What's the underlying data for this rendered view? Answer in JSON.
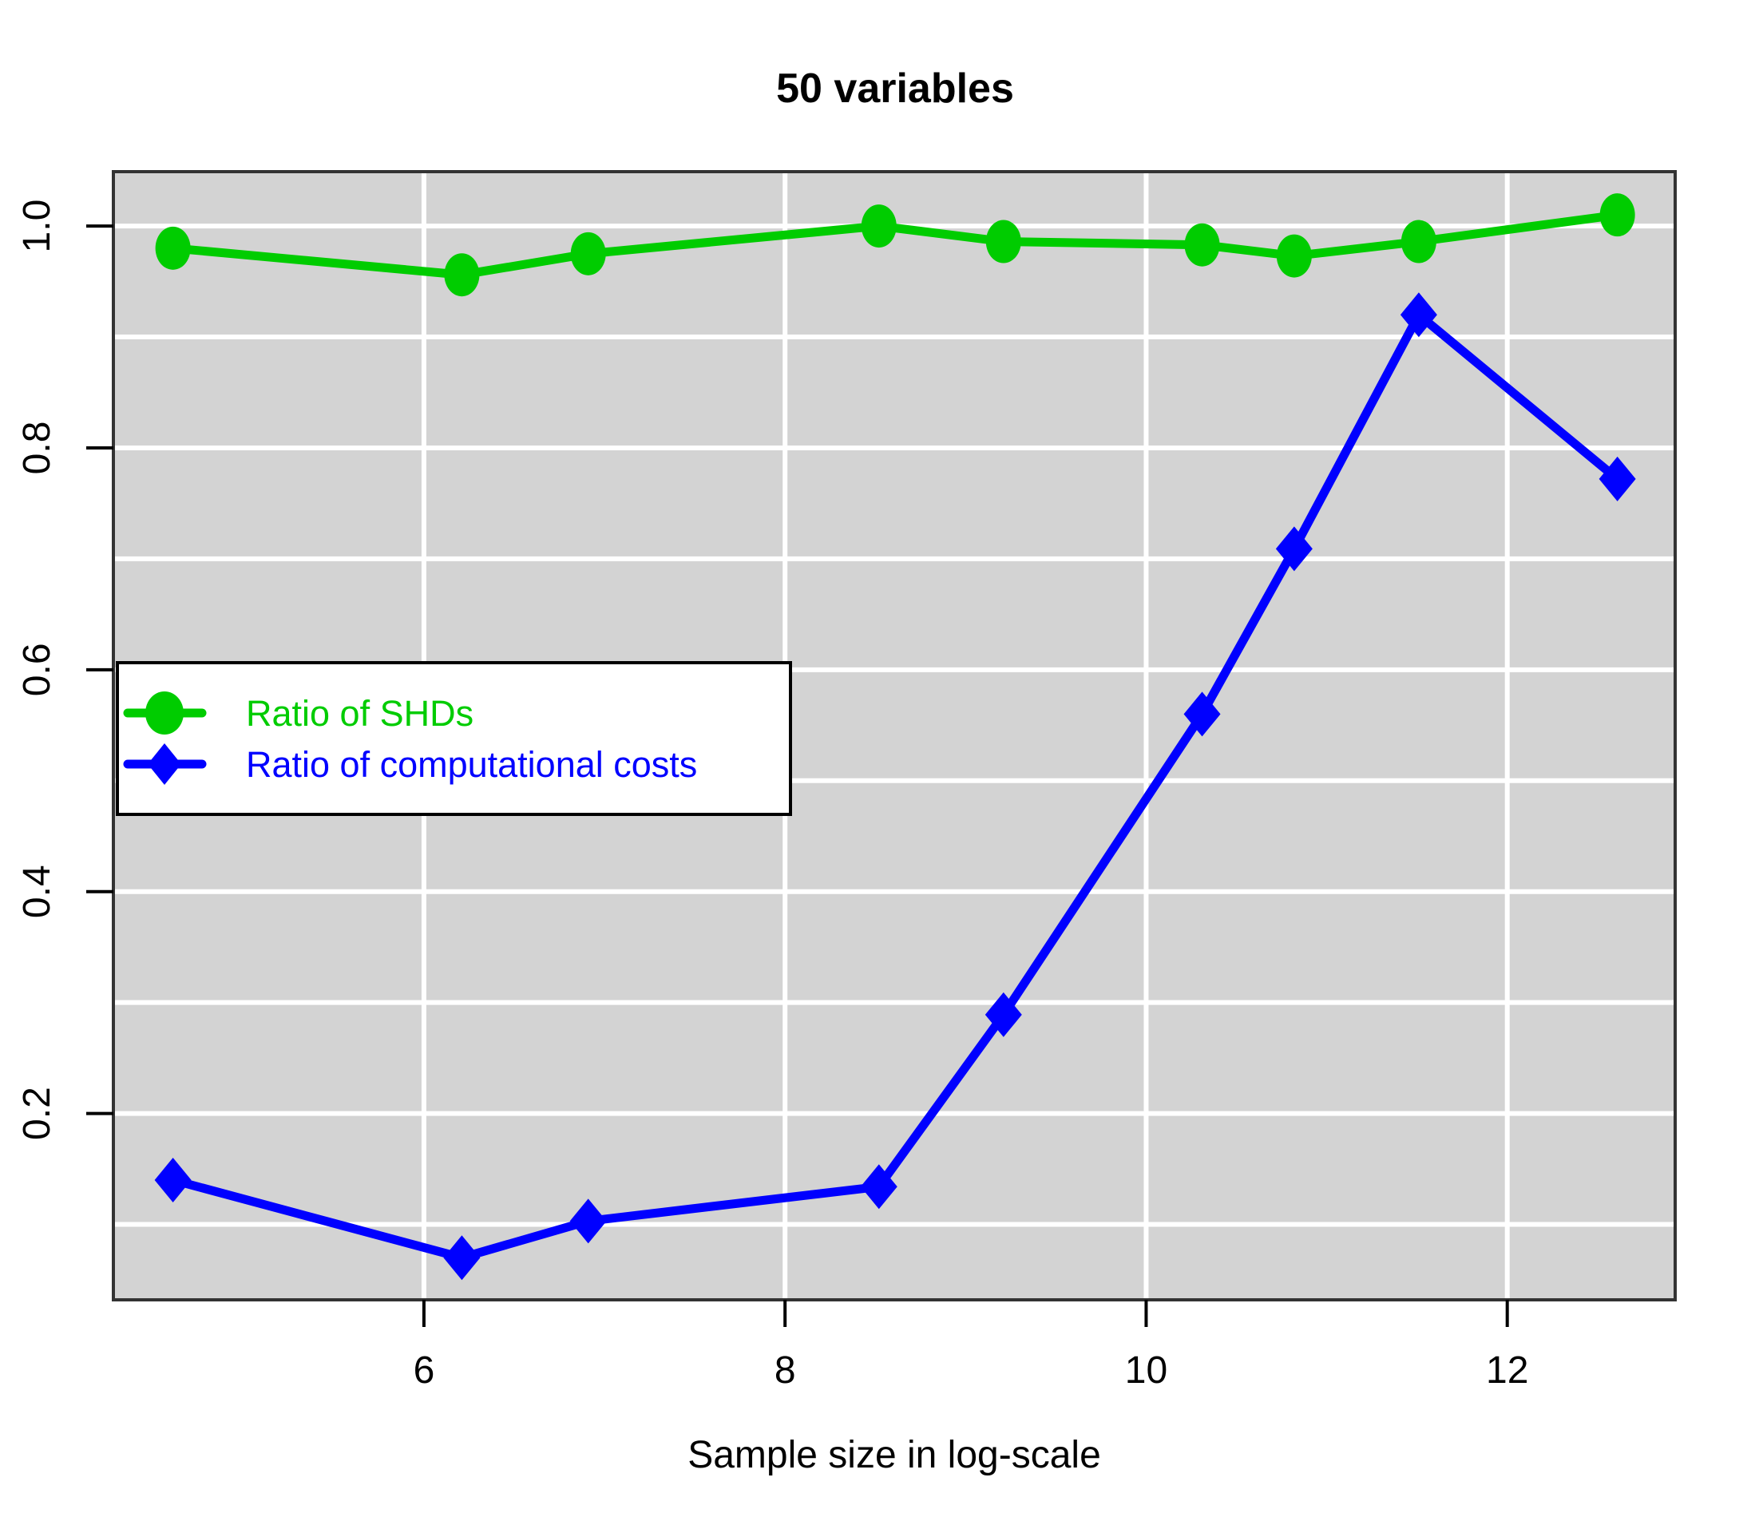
{
  "title": "50 variables",
  "xlabel": "Sample size in log-scale",
  "legend": {
    "items": [
      {
        "label": "Ratio of SHDs",
        "color": "#00CC00",
        "marker": "circle"
      },
      {
        "label": "Ratio of computational costs",
        "color": "#0000FF",
        "marker": "diamond"
      }
    ]
  },
  "chart_data": {
    "type": "line",
    "title": "50 variables",
    "xlabel": "Sample size in log-scale",
    "ylabel": "",
    "xlim": [
      4.28,
      12.93
    ],
    "ylim": [
      0.032,
      1.049
    ],
    "x_ticks": [
      6,
      8,
      10,
      12
    ],
    "x_tick_labels": [
      "6",
      "8",
      "10",
      "12"
    ],
    "y_ticks": [
      0.2,
      0.4,
      0.6,
      0.8,
      1.0
    ],
    "y_tick_labels": [
      "0.2",
      "0.4",
      "0.6",
      "0.8",
      "1.0"
    ],
    "grid": {
      "x_at": [
        6,
        8,
        10,
        12
      ],
      "y_at": [
        0.1,
        0.2,
        0.3,
        0.4,
        0.5,
        0.6,
        0.7,
        0.8,
        0.9,
        1.0
      ],
      "color": "#FFFFFF"
    },
    "x": [
      4.61,
      6.21,
      6.91,
      8.52,
      9.21,
      10.31,
      10.82,
      11.51,
      12.61
    ],
    "series": [
      {
        "name": "Ratio of SHDs",
        "color": "#00CC00",
        "marker": "circle",
        "values": [
          0.98,
          0.956,
          0.975,
          1.0,
          0.986,
          0.983,
          0.973,
          0.986,
          1.01
        ]
      },
      {
        "name": "Ratio of computational costs",
        "color": "#0000FF",
        "marker": "diamond",
        "values": [
          0.14,
          0.07,
          0.103,
          0.134,
          0.289,
          0.56,
          0.709,
          0.92,
          0.772
        ]
      }
    ],
    "colors": {
      "plot_bg": "#D3D3D3",
      "grid": "#FFFFFF",
      "border": "#333333",
      "text": "#000000"
    },
    "legend_position": "left-middle"
  }
}
